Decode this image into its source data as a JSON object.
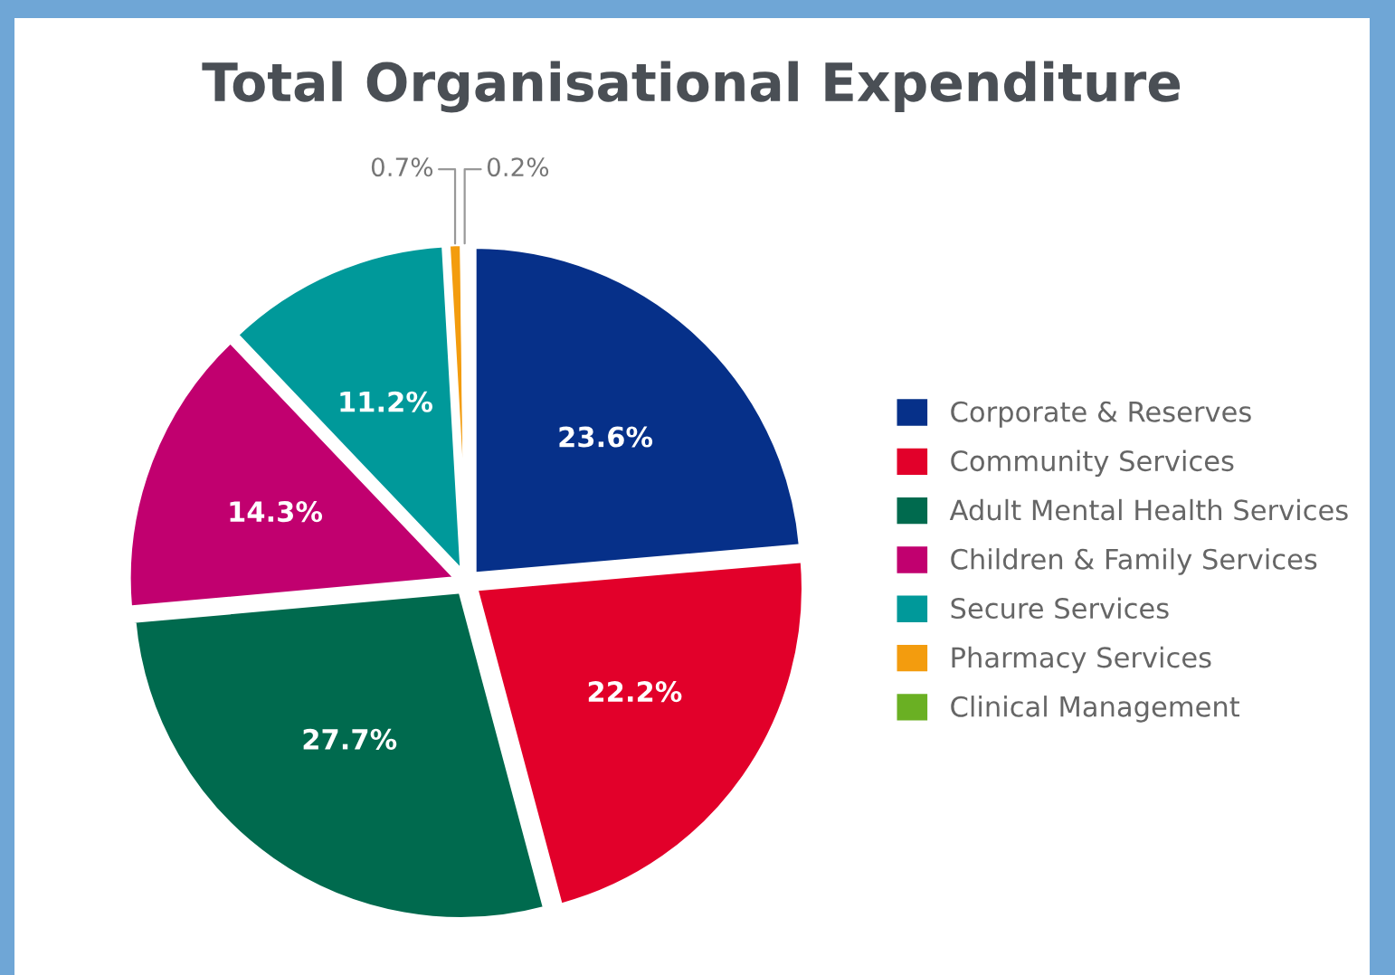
{
  "chart_data": {
    "type": "pie",
    "title": "Total Organisational Expenditure",
    "categories": [
      "Corporate & Reserves",
      "Community Services",
      "Adult Mental Health Services",
      "Children & Family Services",
      "Secure Services",
      "Pharmacy Services",
      "Clinical Management"
    ],
    "values": [
      23.6,
      22.2,
      27.7,
      14.3,
      11.2,
      0.7,
      0.2
    ],
    "colors": [
      "#063089",
      "#e2002a",
      "#006a4e",
      "#c1006f",
      "#00999a",
      "#f39c0e",
      "#6ab023"
    ],
    "value_labels": [
      "23.6%",
      "22.2%",
      "27.7%",
      "14.3%",
      "11.2%",
      "0.7%",
      "0.2%"
    ],
    "legend": "right"
  }
}
